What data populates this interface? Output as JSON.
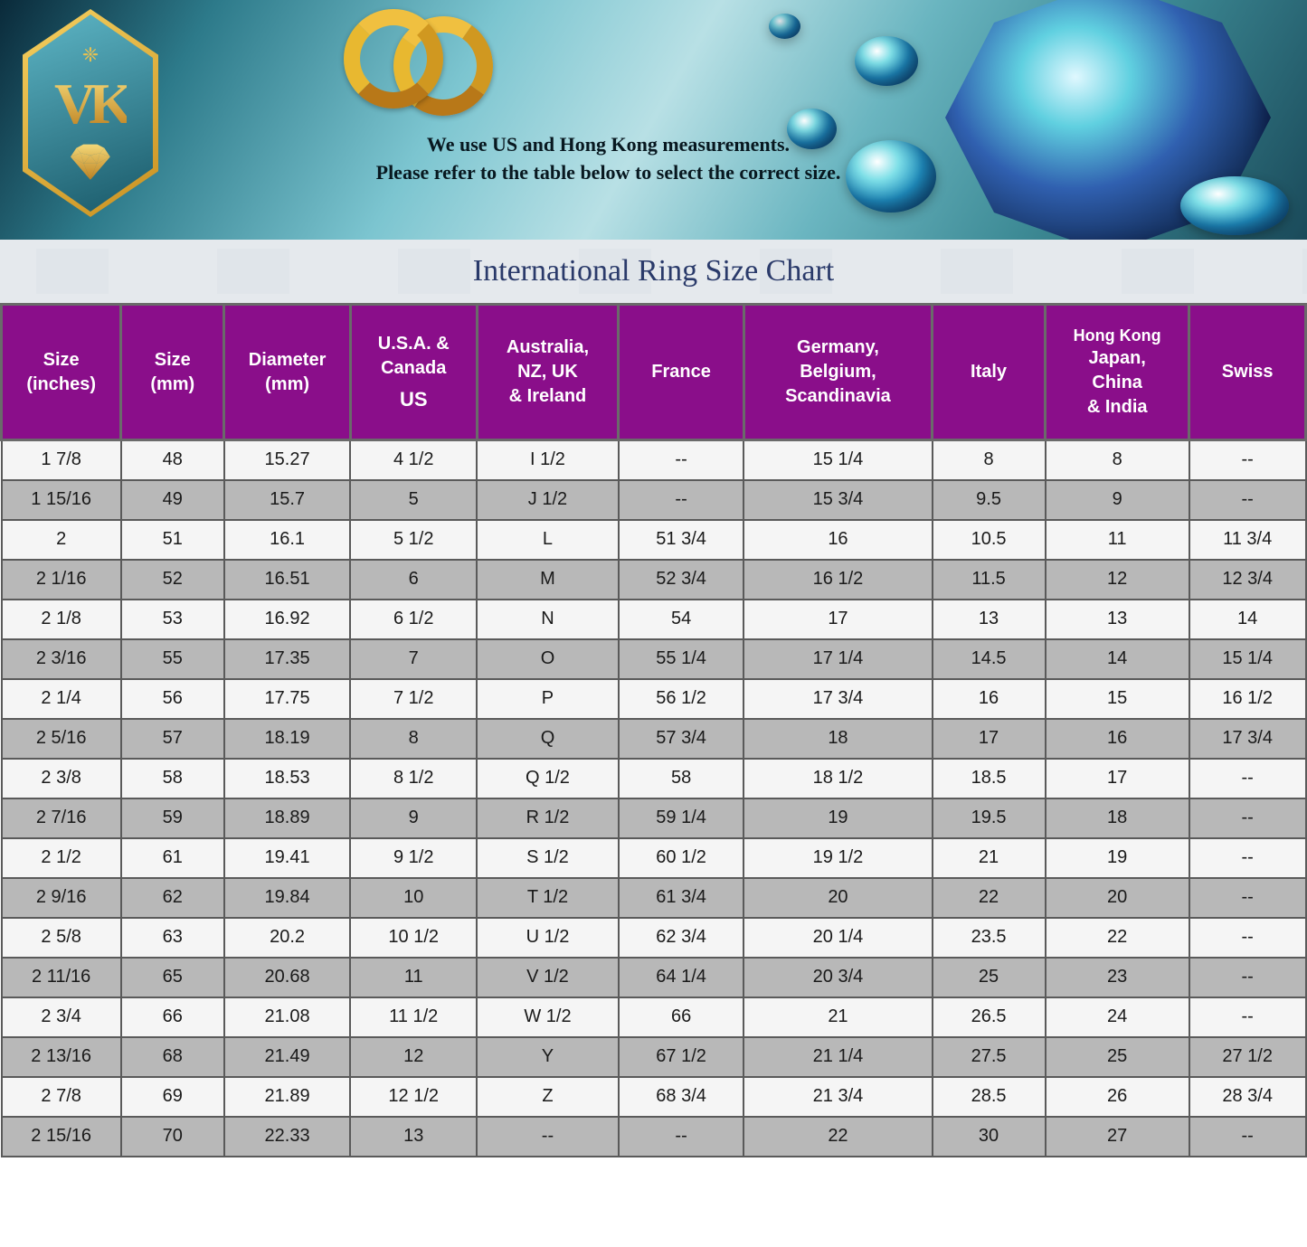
{
  "banner": {
    "logo_text": "VK",
    "line1": "We use US and Hong Kong measurements.",
    "line2": "Please refer to the table below to select the correct size."
  },
  "title": "International Ring Size Chart",
  "table": {
    "header_bg": "#8a0e8a",
    "header_fg": "#ffffff",
    "row_odd_bg": "#f5f5f5",
    "row_even_bg": "#b8b8b8",
    "border_color": "#5a5a5a",
    "columns": [
      {
        "label": "Size\n(inches)",
        "sub": ""
      },
      {
        "label": "Size\n(mm)",
        "sub": ""
      },
      {
        "label": "Diameter\n(mm)",
        "sub": ""
      },
      {
        "label": "U.S.A. &\nCanada",
        "sub": "US"
      },
      {
        "label": "Australia,\nNZ, UK\n& Ireland",
        "sub": ""
      },
      {
        "label": "France",
        "sub": ""
      },
      {
        "label": "Germany,\nBelgium,\nScandinavia",
        "sub": ""
      },
      {
        "label": "Italy",
        "sub": ""
      },
      {
        "label": "Hong Kong\nJapan,\nChina\n& India",
        "sub": ""
      },
      {
        "label": "Swiss",
        "sub": ""
      }
    ],
    "rows": [
      [
        "1  7/8",
        "48",
        "15.27",
        "4 1/2",
        "I 1/2",
        "--",
        "15 1/4",
        "8",
        "8",
        "--"
      ],
      [
        "1 15/16",
        "49",
        "15.7",
        "5",
        "J 1/2",
        "--",
        "15 3/4",
        "9.5",
        "9",
        "--"
      ],
      [
        "2",
        "51",
        "16.1",
        "5 1/2",
        "L",
        "51 3/4",
        "16",
        "10.5",
        "11",
        "11 3/4"
      ],
      [
        "2  1/16",
        "52",
        "16.51",
        "6",
        "M",
        "52 3/4",
        "16 1/2",
        "11.5",
        "12",
        "12 3/4"
      ],
      [
        "2  1/8",
        "53",
        "16.92",
        "6 1/2",
        "N",
        "54",
        "17",
        "13",
        "13",
        "14"
      ],
      [
        "2  3/16",
        "55",
        "17.35",
        "7",
        "O",
        "55 1/4",
        "17 1/4",
        "14.5",
        "14",
        "15 1/4"
      ],
      [
        "2  1/4",
        "56",
        "17.75",
        "7 1/2",
        "P",
        "56 1/2",
        "17 3/4",
        "16",
        "15",
        "16 1/2"
      ],
      [
        "2  5/16",
        "57",
        "18.19",
        "8",
        "Q",
        "57 3/4",
        "18",
        "17",
        "16",
        "17 3/4"
      ],
      [
        "2  3/8",
        "58",
        "18.53",
        "8 1/2",
        "Q 1/2",
        "58",
        "18 1/2",
        "18.5",
        "17",
        "--"
      ],
      [
        "2  7/16",
        "59",
        "18.89",
        "9",
        "R 1/2",
        "59 1/4",
        "19",
        "19.5",
        "18",
        "--"
      ],
      [
        "2  1/2",
        "61",
        "19.41",
        "9 1/2",
        "S 1/2",
        "60 1/2",
        "19 1/2",
        "21",
        "19",
        "--"
      ],
      [
        "2  9/16",
        "62",
        "19.84",
        "10",
        "T 1/2",
        "61 3/4",
        "20",
        "22",
        "20",
        "--"
      ],
      [
        "2  5/8",
        "63",
        "20.2",
        "10 1/2",
        "U 1/2",
        "62 3/4",
        "20 1/4",
        "23.5",
        "22",
        "--"
      ],
      [
        "2 11/16",
        "65",
        "20.68",
        "11",
        "V 1/2",
        "64 1/4",
        "20 3/4",
        "25",
        "23",
        "--"
      ],
      [
        "2  3/4",
        "66",
        "21.08",
        "11 1/2",
        "W 1/2",
        "66",
        "21",
        "26.5",
        "24",
        "--"
      ],
      [
        "2 13/16",
        "68",
        "21.49",
        "12",
        "Y",
        "67 1/2",
        "21 1/4",
        "27.5",
        "25",
        "27 1/2"
      ],
      [
        "2  7/8",
        "69",
        "21.89",
        "12 1/2",
        "Z",
        "68 3/4",
        "21 3/4",
        "28.5",
        "26",
        "28 3/4"
      ],
      [
        "2 15/16",
        "70",
        "22.33",
        "13",
        "--",
        "--",
        "22",
        "30",
        "27",
        "--"
      ]
    ]
  }
}
